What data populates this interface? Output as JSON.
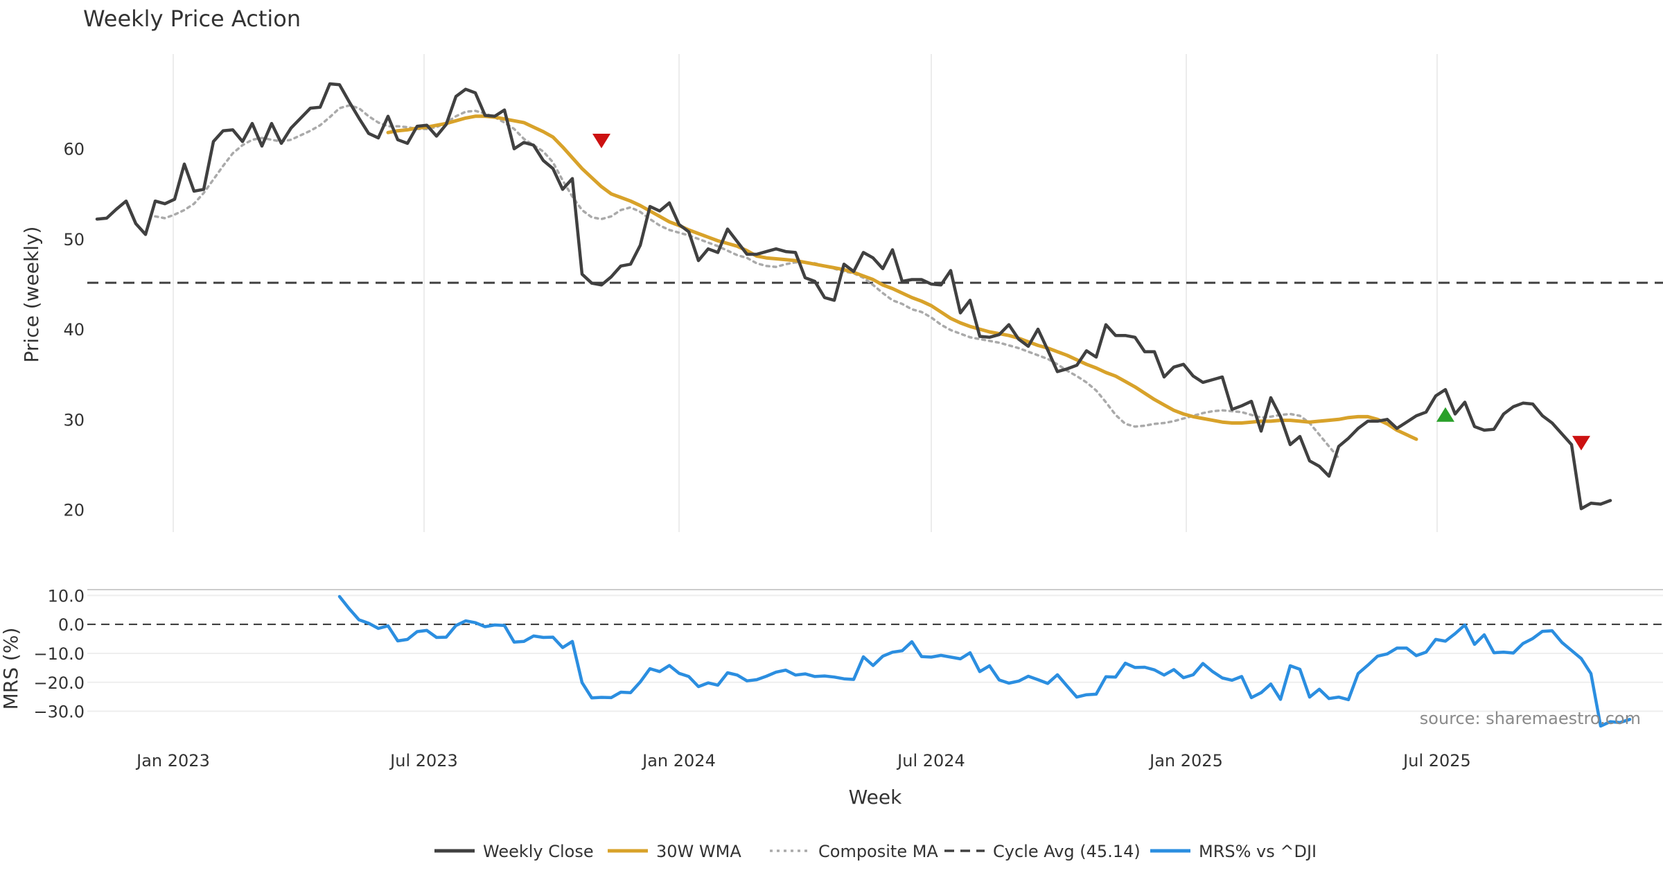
{
  "chart_data": [
    {
      "type": "line",
      "title": "Weekly Price Action",
      "xlabel": "Week",
      "ylabel": "Price (weekly)",
      "ylim": [
        17.5,
        70.5
      ],
      "y_ticks": [
        20,
        30,
        40,
        50,
        60
      ],
      "x_range": [
        "2022-10-31",
        "2025-10-20"
      ],
      "x_ticks": [
        {
          "date": "2023-01-01",
          "label": "Jan 2023"
        },
        {
          "date": "2023-07-01",
          "label": "Jul 2023"
        },
        {
          "date": "2024-01-01",
          "label": "Jan 2024"
        },
        {
          "date": "2024-07-01",
          "label": "Jul 2024"
        },
        {
          "date": "2025-01-01",
          "label": "Jan 2025"
        },
        {
          "date": "2025-07-01",
          "label": "Jul 2025"
        }
      ],
      "grid": "vertical",
      "series": [
        {
          "name": "Weekly Close",
          "color": "#404040",
          "start": "2022-11-07",
          "interval_days": 7,
          "values": [
            52.2,
            52.3,
            53.3,
            54.2,
            51.7,
            50.5,
            54.2,
            53.9,
            54.4,
            58.3,
            55.3,
            55.5,
            60.8,
            62.0,
            62.1,
            60.8,
            62.8,
            60.3,
            62.8,
            60.6,
            62.3,
            63.4,
            64.5,
            64.6,
            67.2,
            67.1,
            65.2,
            63.4,
            61.7,
            61.2,
            63.6,
            61.0,
            60.6,
            62.5,
            62.6,
            61.4,
            62.7,
            65.8,
            66.6,
            66.2,
            63.7,
            63.6,
            64.3,
            60.0,
            60.7,
            60.4,
            58.7,
            57.8,
            55.5,
            56.7,
            46.1,
            45.1,
            44.9,
            45.8,
            47.0,
            47.2,
            49.3,
            53.6,
            53.1,
            54.0,
            51.6,
            50.8,
            47.6,
            48.9,
            48.5,
            51.1,
            49.7,
            48.3,
            48.3,
            48.6,
            48.9,
            48.6,
            48.5,
            45.7,
            45.3,
            43.5,
            43.2,
            47.2,
            46.4,
            48.5,
            47.9,
            46.7,
            48.8,
            45.3,
            45.5,
            45.5,
            45.0,
            44.9,
            46.5,
            41.8,
            43.2,
            39.2,
            39.1,
            39.4,
            40.5,
            38.9,
            38.1,
            40.0,
            37.7,
            35.3,
            35.6,
            36.0,
            37.6,
            36.9,
            40.5,
            39.3,
            39.3,
            39.1,
            37.5,
            37.5,
            34.7,
            35.8,
            36.1,
            34.8,
            34.1,
            34.4,
            34.7,
            31.1,
            31.5,
            32.0,
            28.7,
            32.4,
            30.3,
            27.2,
            28.1,
            25.4,
            24.8,
            23.7,
            27.0,
            27.9,
            29.0,
            29.8,
            29.8,
            30.0,
            29.0,
            29.7,
            30.4,
            30.8,
            32.6,
            33.3,
            30.6,
            31.9,
            29.2,
            28.8,
            28.9,
            30.6,
            31.4,
            31.8,
            31.7,
            30.4,
            29.6,
            28.4,
            27.2,
            20.1,
            20.7,
            20.6,
            21.0
          ]
        },
        {
          "name": "30W WMA",
          "color": "#d8a22a",
          "start": "2023-06-05",
          "interval_days": 7,
          "values": [
            61.8,
            62.0,
            62.1,
            62.3,
            62.4,
            62.6,
            62.8,
            63.1,
            63.4,
            63.6,
            63.6,
            63.5,
            63.3,
            63.1,
            62.9,
            62.4,
            61.9,
            61.3,
            60.2,
            59.0,
            57.8,
            56.8,
            55.8,
            55.0,
            54.6,
            54.2,
            53.7,
            53.1,
            52.5,
            51.9,
            51.5,
            51.0,
            50.6,
            50.2,
            49.8,
            49.5,
            49.2,
            48.7,
            48.1,
            47.9,
            47.8,
            47.7,
            47.6,
            47.4,
            47.2,
            47.0,
            46.8,
            46.6,
            46.3,
            45.9,
            45.5,
            44.9,
            44.5,
            44.0,
            43.5,
            43.1,
            42.6,
            41.9,
            41.2,
            40.7,
            40.3,
            40.0,
            39.7,
            39.5,
            39.3,
            39.0,
            38.6,
            38.2,
            37.9,
            37.5,
            37.1,
            36.6,
            36.1,
            35.7,
            35.2,
            34.8,
            34.2,
            33.6,
            32.9,
            32.2,
            31.6,
            31.0,
            30.6,
            30.3,
            30.1,
            29.9,
            29.7,
            29.6,
            29.6,
            29.7,
            29.8,
            29.8,
            29.9,
            29.9,
            29.8,
            29.7,
            29.8,
            29.9,
            30.0,
            30.2,
            30.3,
            30.3,
            30.0,
            29.5,
            28.8,
            28.3,
            27.8
          ]
        },
        {
          "name": "Composite MA",
          "color": "#aaaaaa",
          "start": "2022-12-19",
          "interval_days": 7,
          "values": [
            52.5,
            52.3,
            52.7,
            53.2,
            53.9,
            55.1,
            56.6,
            58.1,
            59.5,
            60.4,
            61.0,
            61.2,
            61.0,
            60.8,
            61.0,
            61.5,
            62.0,
            62.6,
            63.5,
            64.5,
            64.8,
            64.5,
            63.6,
            62.9,
            62.5,
            62.5,
            62.4,
            62.2,
            62.2,
            62.4,
            62.9,
            63.6,
            64.1,
            64.2,
            63.9,
            63.5,
            62.9,
            62.2,
            61.1,
            60.4,
            59.7,
            58.5,
            56.5,
            54.7,
            53.2,
            52.4,
            52.2,
            52.5,
            53.2,
            53.5,
            53.0,
            52.2,
            51.5,
            51.0,
            50.7,
            50.4,
            50.0,
            49.6,
            49.2,
            48.7,
            48.2,
            47.9,
            47.3,
            47.0,
            46.9,
            47.2,
            47.4,
            47.4,
            47.3,
            47.0,
            46.7,
            46.4,
            46.2,
            45.7,
            44.9,
            44.0,
            43.2,
            42.8,
            42.2,
            41.9,
            41.3,
            40.5,
            39.9,
            39.5,
            39.1,
            38.9,
            38.7,
            38.5,
            38.2,
            37.9,
            37.5,
            37.1,
            36.7,
            36.1,
            35.4,
            34.8,
            34.1,
            33.2,
            31.9,
            30.5,
            29.5,
            29.2,
            29.3,
            29.5,
            29.6,
            29.8,
            30.1,
            30.4,
            30.7,
            30.9,
            31.0,
            30.9,
            30.8,
            30.5,
            30.2,
            30.3,
            30.5,
            30.6,
            30.4,
            29.6,
            28.3,
            27.0,
            25.7
          ]
        }
      ],
      "reference_line": {
        "name": "Cycle Avg (45.14)",
        "value": 45.14,
        "color": "#404040"
      },
      "markers": [
        {
          "date": "2023-11-06",
          "value": 60.9,
          "direction": "down",
          "color": "#cc1111"
        },
        {
          "date": "2025-07-07",
          "value": 30.5,
          "direction": "up",
          "color": "#2aa02a"
        },
        {
          "date": "2025-10-13",
          "value": 27.4,
          "direction": "down",
          "color": "#cc1111"
        }
      ]
    },
    {
      "type": "line",
      "ylabel": "MRS (%)",
      "ylim": [
        -38,
        12
      ],
      "y_ticks": [
        10,
        0,
        -10,
        -20,
        -30
      ],
      "y_tick_labels": [
        "10.0",
        "0.0",
        "−10.0",
        "−20.0",
        "−30.0"
      ],
      "zero_line": 0,
      "series": [
        {
          "name": "MRS% vs ^DJI",
          "color": "#2b8ee0",
          "start": "2023-05-01",
          "interval_days": 7,
          "values": [
            9.6,
            5.4,
            1.6,
            0.4,
            -1.4,
            -0.5,
            -5.7,
            -5.2,
            -2.5,
            -2.1,
            -4.5,
            -4.4,
            -0.4,
            1.2,
            0.6,
            -0.8,
            -0.2,
            -0.4,
            -6.1,
            -5.9,
            -4.0,
            -4.5,
            -4.4,
            -8.0,
            -5.9,
            -20.1,
            -25.4,
            -25.2,
            -25.3,
            -23.4,
            -23.6,
            -19.9,
            -15.3,
            -16.3,
            -14.2,
            -16.9,
            -18.0,
            -21.5,
            -20.2,
            -21.0,
            -16.7,
            -17.5,
            -19.5,
            -19.1,
            -17.9,
            -16.5,
            -15.8,
            -17.5,
            -17.1,
            -18.0,
            -17.8,
            -18.2,
            -18.8,
            -19.0,
            -11.2,
            -14.2,
            -11.0,
            -9.6,
            -9.1,
            -6.0,
            -11.1,
            -11.3,
            -10.7,
            -11.3,
            -11.9,
            -9.8,
            -16.3,
            -14.3,
            -19.2,
            -20.3,
            -19.6,
            -17.9,
            -19.1,
            -20.4,
            -17.4,
            -21.3,
            -25.1,
            -24.3,
            -24.1,
            -18.1,
            -18.2,
            -13.4,
            -14.9,
            -14.8,
            -15.7,
            -17.5,
            -15.6,
            -18.4,
            -17.4,
            -13.5,
            -16.3,
            -18.5,
            -19.3,
            -18.0,
            -25.3,
            -23.6,
            -20.6,
            -25.9,
            -14.3,
            -15.5,
            -25.1,
            -22.4,
            -25.6,
            -25.1,
            -26.0,
            -17.0,
            -14.1,
            -11.0,
            -10.2,
            -8.2,
            -8.2,
            -10.8,
            -9.6,
            -5.2,
            -5.8,
            -3.2,
            -0.2,
            -6.9,
            -3.6,
            -9.8,
            -9.6,
            -9.9,
            -6.6,
            -4.9,
            -2.4,
            -2.2,
            -6.2,
            -9.0,
            -11.8,
            -17.0,
            -35.1,
            -33.6,
            -33.9,
            -32.8
          ]
        }
      ]
    }
  ],
  "source_note": "source: sharemaestro.com",
  "legend": [
    {
      "label": "Weekly Close",
      "color": "#404040",
      "style": "solid"
    },
    {
      "label": "30W WMA",
      "color": "#d8a22a",
      "style": "solid"
    },
    {
      "label": "Composite MA",
      "color": "#aaaaaa",
      "style": "dotted"
    },
    {
      "label": "Cycle Avg (45.14)",
      "color": "#404040",
      "style": "dashed"
    },
    {
      "label": "MRS% vs ^DJI",
      "color": "#2b8ee0",
      "style": "solid"
    }
  ]
}
